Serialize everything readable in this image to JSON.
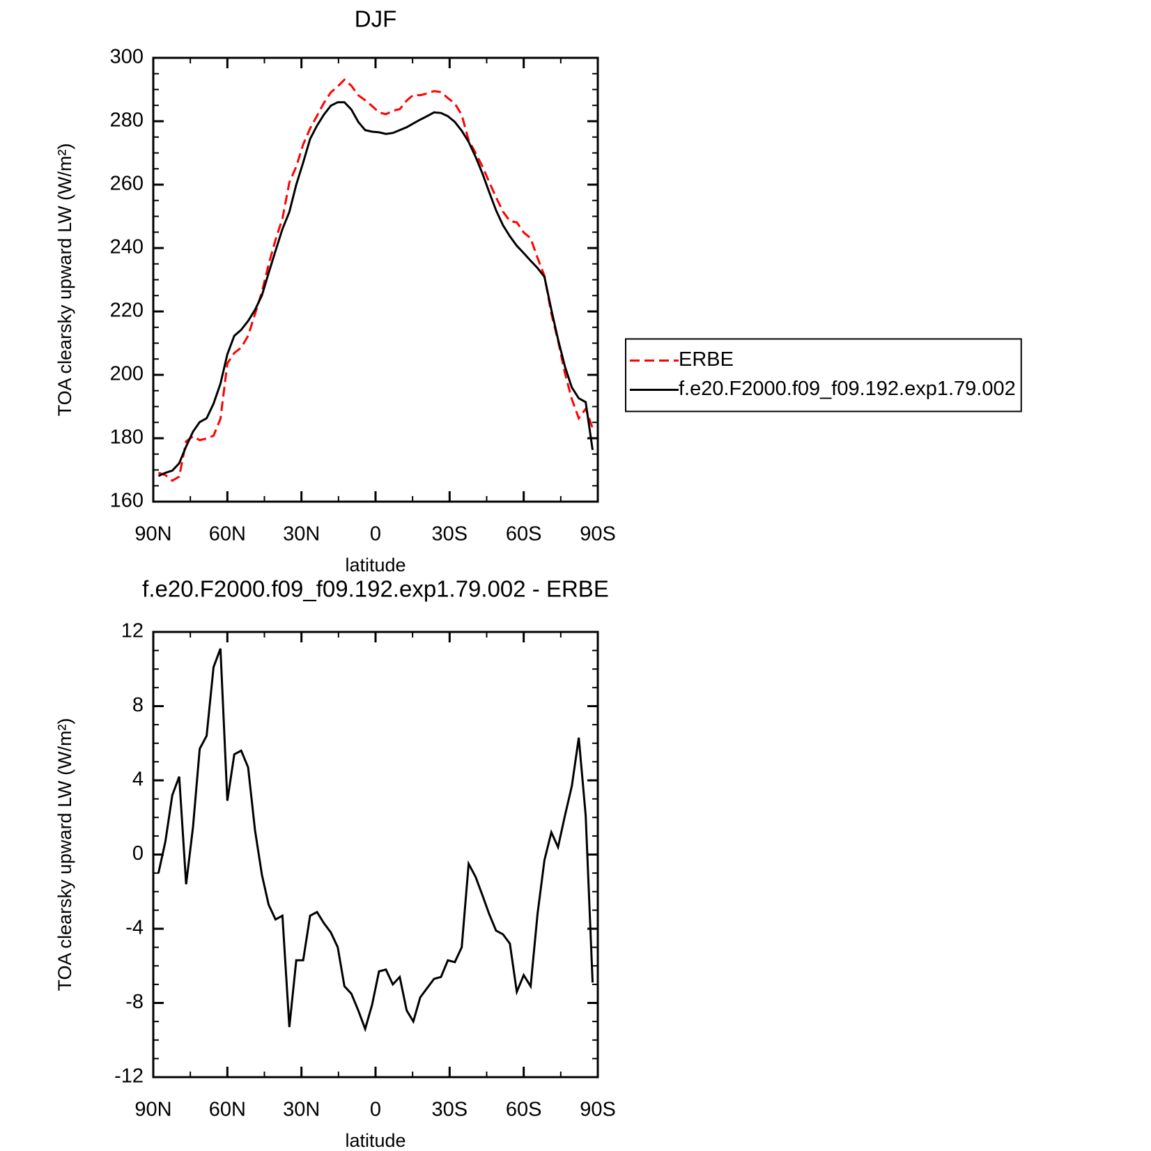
{
  "chart_data": [
    {
      "type": "line",
      "title": "DJF",
      "xlabel": "latitude",
      "ylabel": "TOA clearsky upward LW (W/m²)",
      "x": [
        87.9,
        85.1,
        82.3,
        79.5,
        76.7,
        73.9,
        71.2,
        68.4,
        65.6,
        62.8,
        60.0,
        57.2,
        54.4,
        51.6,
        48.8,
        46.0,
        43.3,
        40.5,
        37.7,
        34.9,
        32.1,
        29.3,
        26.5,
        23.7,
        20.9,
        18.1,
        15.3,
        12.6,
        9.8,
        7.0,
        4.2,
        1.4,
        -1.4,
        -4.2,
        -7.0,
        -9.8,
        -12.6,
        -15.3,
        -18.1,
        -20.9,
        -23.7,
        -26.5,
        -29.3,
        -32.1,
        -34.9,
        -37.7,
        -40.5,
        -43.3,
        -46.0,
        -48.8,
        -51.6,
        -54.4,
        -57.2,
        -60.0,
        -62.8,
        -65.6,
        -68.4,
        -71.2,
        -73.9,
        -76.7,
        -79.5,
        -82.3,
        -85.1,
        -87.9
      ],
      "series": [
        {
          "name": "ERBE",
          "color": "#ff0000",
          "line_style": "dashed",
          "values": [
            169.1,
            168.4,
            166.6,
            167.9,
            179.0,
            180.6,
            179.4,
            179.9,
            180.8,
            186.1,
            203.6,
            206.9,
            208.6,
            212.3,
            219.2,
            226.2,
            234.8,
            242.6,
            249.3,
            260.7,
            265.7,
            272.7,
            277.7,
            281.7,
            285.8,
            289.1,
            291.0,
            293.1,
            291.2,
            288.2,
            286.6,
            284.8,
            282.8,
            282.2,
            283.3,
            283.8,
            286.5,
            288.3,
            288.2,
            288.8,
            289.5,
            289.2,
            287.3,
            285.6,
            282.0,
            274.0,
            270.0,
            265.7,
            260.9,
            256.0,
            251.5,
            248.5,
            248.1,
            244.9,
            243.1,
            236.9,
            231.2,
            219.3,
            210.8,
            200.5,
            192.3,
            186.3,
            189.3,
            183.2
          ]
        },
        {
          "name": "f.e20.F2000.f09_f09.192.exp1.79.002",
          "color": "#000000",
          "line_style": "solid",
          "values": [
            168.1,
            169.1,
            169.8,
            172.1,
            177.4,
            182.1,
            185.1,
            186.3,
            190.9,
            197.2,
            206.5,
            212.3,
            214.2,
            217.0,
            220.5,
            225.1,
            232.1,
            239.1,
            246.0,
            251.4,
            260.0,
            267.0,
            274.4,
            278.6,
            282.1,
            284.9,
            286.0,
            286.0,
            283.7,
            279.8,
            277.2,
            276.7,
            276.5,
            276.0,
            276.3,
            277.2,
            278.1,
            279.3,
            280.5,
            281.6,
            282.8,
            282.6,
            281.6,
            279.8,
            277.0,
            273.5,
            268.8,
            263.5,
            257.7,
            251.9,
            247.2,
            243.7,
            240.7,
            238.4,
            236.0,
            233.7,
            230.9,
            220.5,
            211.2,
            202.6,
            196.0,
            192.6,
            191.4,
            176.3
          ]
        }
      ],
      "xlim": [
        90,
        -90
      ],
      "xticks": [
        {
          "value": 90,
          "label": "90N"
        },
        {
          "value": 60,
          "label": "60N"
        },
        {
          "value": 30,
          "label": "30N"
        },
        0,
        {
          "value": -30,
          "label": "30S"
        },
        {
          "value": -60,
          "label": "60S"
        },
        {
          "value": -90,
          "label": "90S"
        }
      ],
      "ylim": [
        160,
        300
      ],
      "yticks": [
        160,
        180,
        200,
        220,
        240,
        260,
        280,
        300
      ],
      "legend": "right"
    },
    {
      "type": "line",
      "title": "f.e20.F2000.f09_f09.192.exp1.79.002 - ERBE",
      "xlabel": "latitude",
      "ylabel": "TOA clearsky upward LW (W/m²)",
      "x": [
        87.9,
        85.1,
        82.3,
        79.5,
        76.7,
        73.9,
        71.2,
        68.4,
        65.6,
        62.8,
        60.0,
        57.2,
        54.4,
        51.6,
        48.8,
        46.0,
        43.3,
        40.5,
        37.7,
        34.9,
        32.1,
        29.3,
        26.5,
        23.7,
        20.9,
        18.1,
        15.3,
        12.6,
        9.8,
        7.0,
        4.2,
        1.4,
        -1.4,
        -4.2,
        -7.0,
        -9.8,
        -12.6,
        -15.3,
        -18.1,
        -20.9,
        -23.7,
        -26.5,
        -29.3,
        -32.1,
        -34.9,
        -37.7,
        -40.5,
        -43.3,
        -46.0,
        -48.8,
        -51.6,
        -54.4,
        -57.2,
        -60.0,
        -62.8,
        -65.6,
        -68.4,
        -71.2,
        -73.9,
        -76.7,
        -79.5,
        -82.3,
        -85.1,
        -87.9
      ],
      "series": [
        {
          "color": "#000000",
          "line_style": "solid",
          "values": [
            -1.0,
            0.7,
            3.2,
            4.2,
            -1.6,
            1.5,
            5.7,
            6.4,
            10.1,
            11.1,
            2.9,
            5.4,
            5.6,
            4.7,
            1.3,
            -1.1,
            -2.7,
            -3.5,
            -3.3,
            -9.3,
            -5.7,
            -5.7,
            -3.3,
            -3.1,
            -3.7,
            -4.2,
            -5.0,
            -7.1,
            -7.5,
            -8.4,
            -9.4,
            -8.1,
            -6.3,
            -6.2,
            -7.0,
            -6.6,
            -8.4,
            -9.0,
            -7.7,
            -7.2,
            -6.7,
            -6.6,
            -5.7,
            -5.8,
            -5.0,
            -0.5,
            -1.2,
            -2.2,
            -3.2,
            -4.1,
            -4.3,
            -4.8,
            -7.4,
            -6.5,
            -7.1,
            -3.2,
            -0.3,
            1.2,
            0.4,
            2.1,
            3.7,
            6.3,
            2.1,
            -6.9
          ]
        }
      ],
      "xlim": [
        90,
        -90
      ],
      "xticks": [
        {
          "value": 90,
          "label": "90N"
        },
        {
          "value": 60,
          "label": "60N"
        },
        {
          "value": 30,
          "label": "30N"
        },
        0,
        {
          "value": -30,
          "label": "30S"
        },
        {
          "value": -60,
          "label": "60S"
        },
        {
          "value": -90,
          "label": "90S"
        }
      ],
      "ylim": [
        -12,
        12
      ],
      "yticks": [
        -12,
        -8,
        -4,
        0,
        4,
        8,
        12
      ]
    }
  ]
}
